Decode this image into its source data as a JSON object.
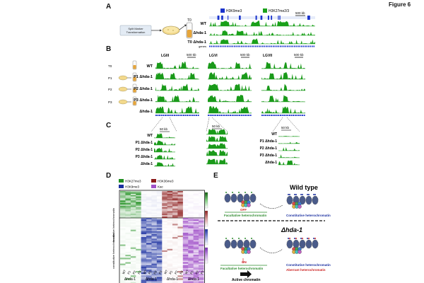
{
  "figure_title": "Figure 6",
  "panels": {
    "a": {
      "letter": "A",
      "workflow_box": "Split Marker\nTransformation",
      "t0_label": "T0",
      "legend": [
        {
          "label": "H3K9me3",
          "color": "#1a33cc"
        },
        {
          "label": "H3K27me2/3",
          "color": "#1aa01a"
        }
      ],
      "scale": "500 kb",
      "tracks": [
        "WT",
        "Δhda-1",
        "T0 Δhda-1"
      ],
      "genes_label": "genes"
    },
    "b": {
      "letter": "B",
      "lg_labels": [
        "LGIII",
        "LGVI",
        "LGVII"
      ],
      "scales": [
        "500 kb",
        "500 kb",
        "500 kb"
      ],
      "passage_labels": [
        "T0",
        "P1",
        "P2",
        "P3"
      ],
      "tracks": [
        "WT",
        "P1 Δhda-1",
        "P2 Δhda-1",
        "P3 Δhda-1",
        "Δhda-1"
      ]
    },
    "c": {
      "letter": "C",
      "scales": [
        "50 kb",
        "50 kb",
        "50 kb"
      ],
      "tracks": [
        "WT",
        "P1 Δhda-1",
        "P2 Δhda-1",
        "P3 Δhda-1",
        "Δhda-1"
      ]
    },
    "d": {
      "letter": "D",
      "legend": [
        {
          "label": "H3K27me3",
          "color": "#1f8f1f"
        },
        {
          "label": "H3K36me3",
          "color": "#8b1a1a"
        },
        {
          "label": "H3K9me3",
          "color": "#1a2fa0"
        },
        {
          "label": "Kac",
          "color": "#a050c8"
        }
      ],
      "row_groups": [
        "facultative heterochromatin",
        "constitutive heterochromatin"
      ],
      "col_labels": [
        "WT",
        "P1",
        "P2",
        "P3",
        "WT",
        "P1",
        "P2",
        "P3",
        "WT",
        "P1",
        "P2",
        "P3",
        "WT",
        "P1",
        "P2",
        "P3"
      ],
      "group_labels": [
        "Δhda-1",
        "Δhda-1",
        "Δhda-1",
        "Δhda-1"
      ]
    },
    "e": {
      "letter": "E",
      "wt_title": "Wild type",
      "mut_title": "Δhda-1",
      "off_label": "OFF",
      "on_label": "ON",
      "facultative": "Facultative heterochromatin",
      "constitutive": "Constitutive heterochromatin",
      "aberrant": "Aberrant heterochromatin",
      "active": "Active chromatin"
    }
  },
  "chart_data": [
    {
      "type": "heatmap",
      "title": "",
      "columns": [
        "H3K27me3 WT",
        "H3K27me3 P1",
        "H3K27me3 P2",
        "H3K27me3 P3",
        "H3K9me3 WT",
        "H3K9me3 P1",
        "H3K9me3 P2",
        "H3K9me3 P3",
        "H3K36me3 WT",
        "H3K36me3 P1",
        "H3K36me3 P2",
        "H3K36me3 P3",
        "Kac WT",
        "Kac P1",
        "Kac P2",
        "Kac P3"
      ],
      "row_groups": [
        "facultative heterochromatin",
        "constitutive heterochromatin"
      ],
      "pattern": [
        {
          "group": "facultative heterochromatin",
          "high": [
            "H3K27me3",
            "H3K36me3"
          ],
          "low": [
            "H3K9me3",
            "Kac"
          ]
        },
        {
          "group": "constitutive heterochromatin",
          "high": [
            "H3K9me3",
            "Kac"
          ],
          "low": [
            "H3K27me3",
            "H3K36me3"
          ]
        }
      ]
    }
  ]
}
